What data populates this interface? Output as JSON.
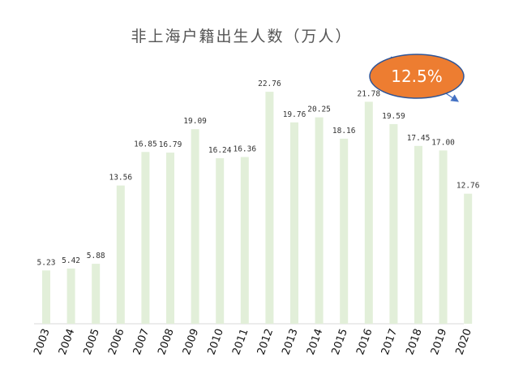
{
  "chart_data": {
    "type": "bar",
    "title": "非上海户籍出生人数（万人）",
    "categories": [
      "2003",
      "2004",
      "2005",
      "2006",
      "2007",
      "2008",
      "2009",
      "2010",
      "2011",
      "2012",
      "2013",
      "2014",
      "2015",
      "2016",
      "2017",
      "2018",
      "2019",
      "2020"
    ],
    "values": [
      5.23,
      5.42,
      5.88,
      13.56,
      16.85,
      16.79,
      19.09,
      16.24,
      16.36,
      22.76,
      19.76,
      20.25,
      18.16,
      21.78,
      19.59,
      17.45,
      17.0,
      12.76
    ],
    "value_labels": [
      "5.23",
      "5.42",
      "5.88",
      "13.56",
      "16.85",
      "16.79",
      "19.09",
      "16.24",
      "16.36",
      "22.76",
      "19.76",
      "20.25",
      "18.16",
      "21.78",
      "19.59",
      "17.45",
      "17.00",
      "12.76"
    ],
    "ylim": [
      0,
      23.8
    ],
    "grid": false,
    "legend": "none",
    "annotation": {
      "text": "12.5%",
      "description": "downward trend arrow"
    },
    "colors": {
      "bar": "#e2efd9",
      "axis": "#d9d9d9",
      "callout_fill": "#ed7d31",
      "callout_stroke": "#2f5597",
      "arrow": "#4472c4"
    }
  }
}
